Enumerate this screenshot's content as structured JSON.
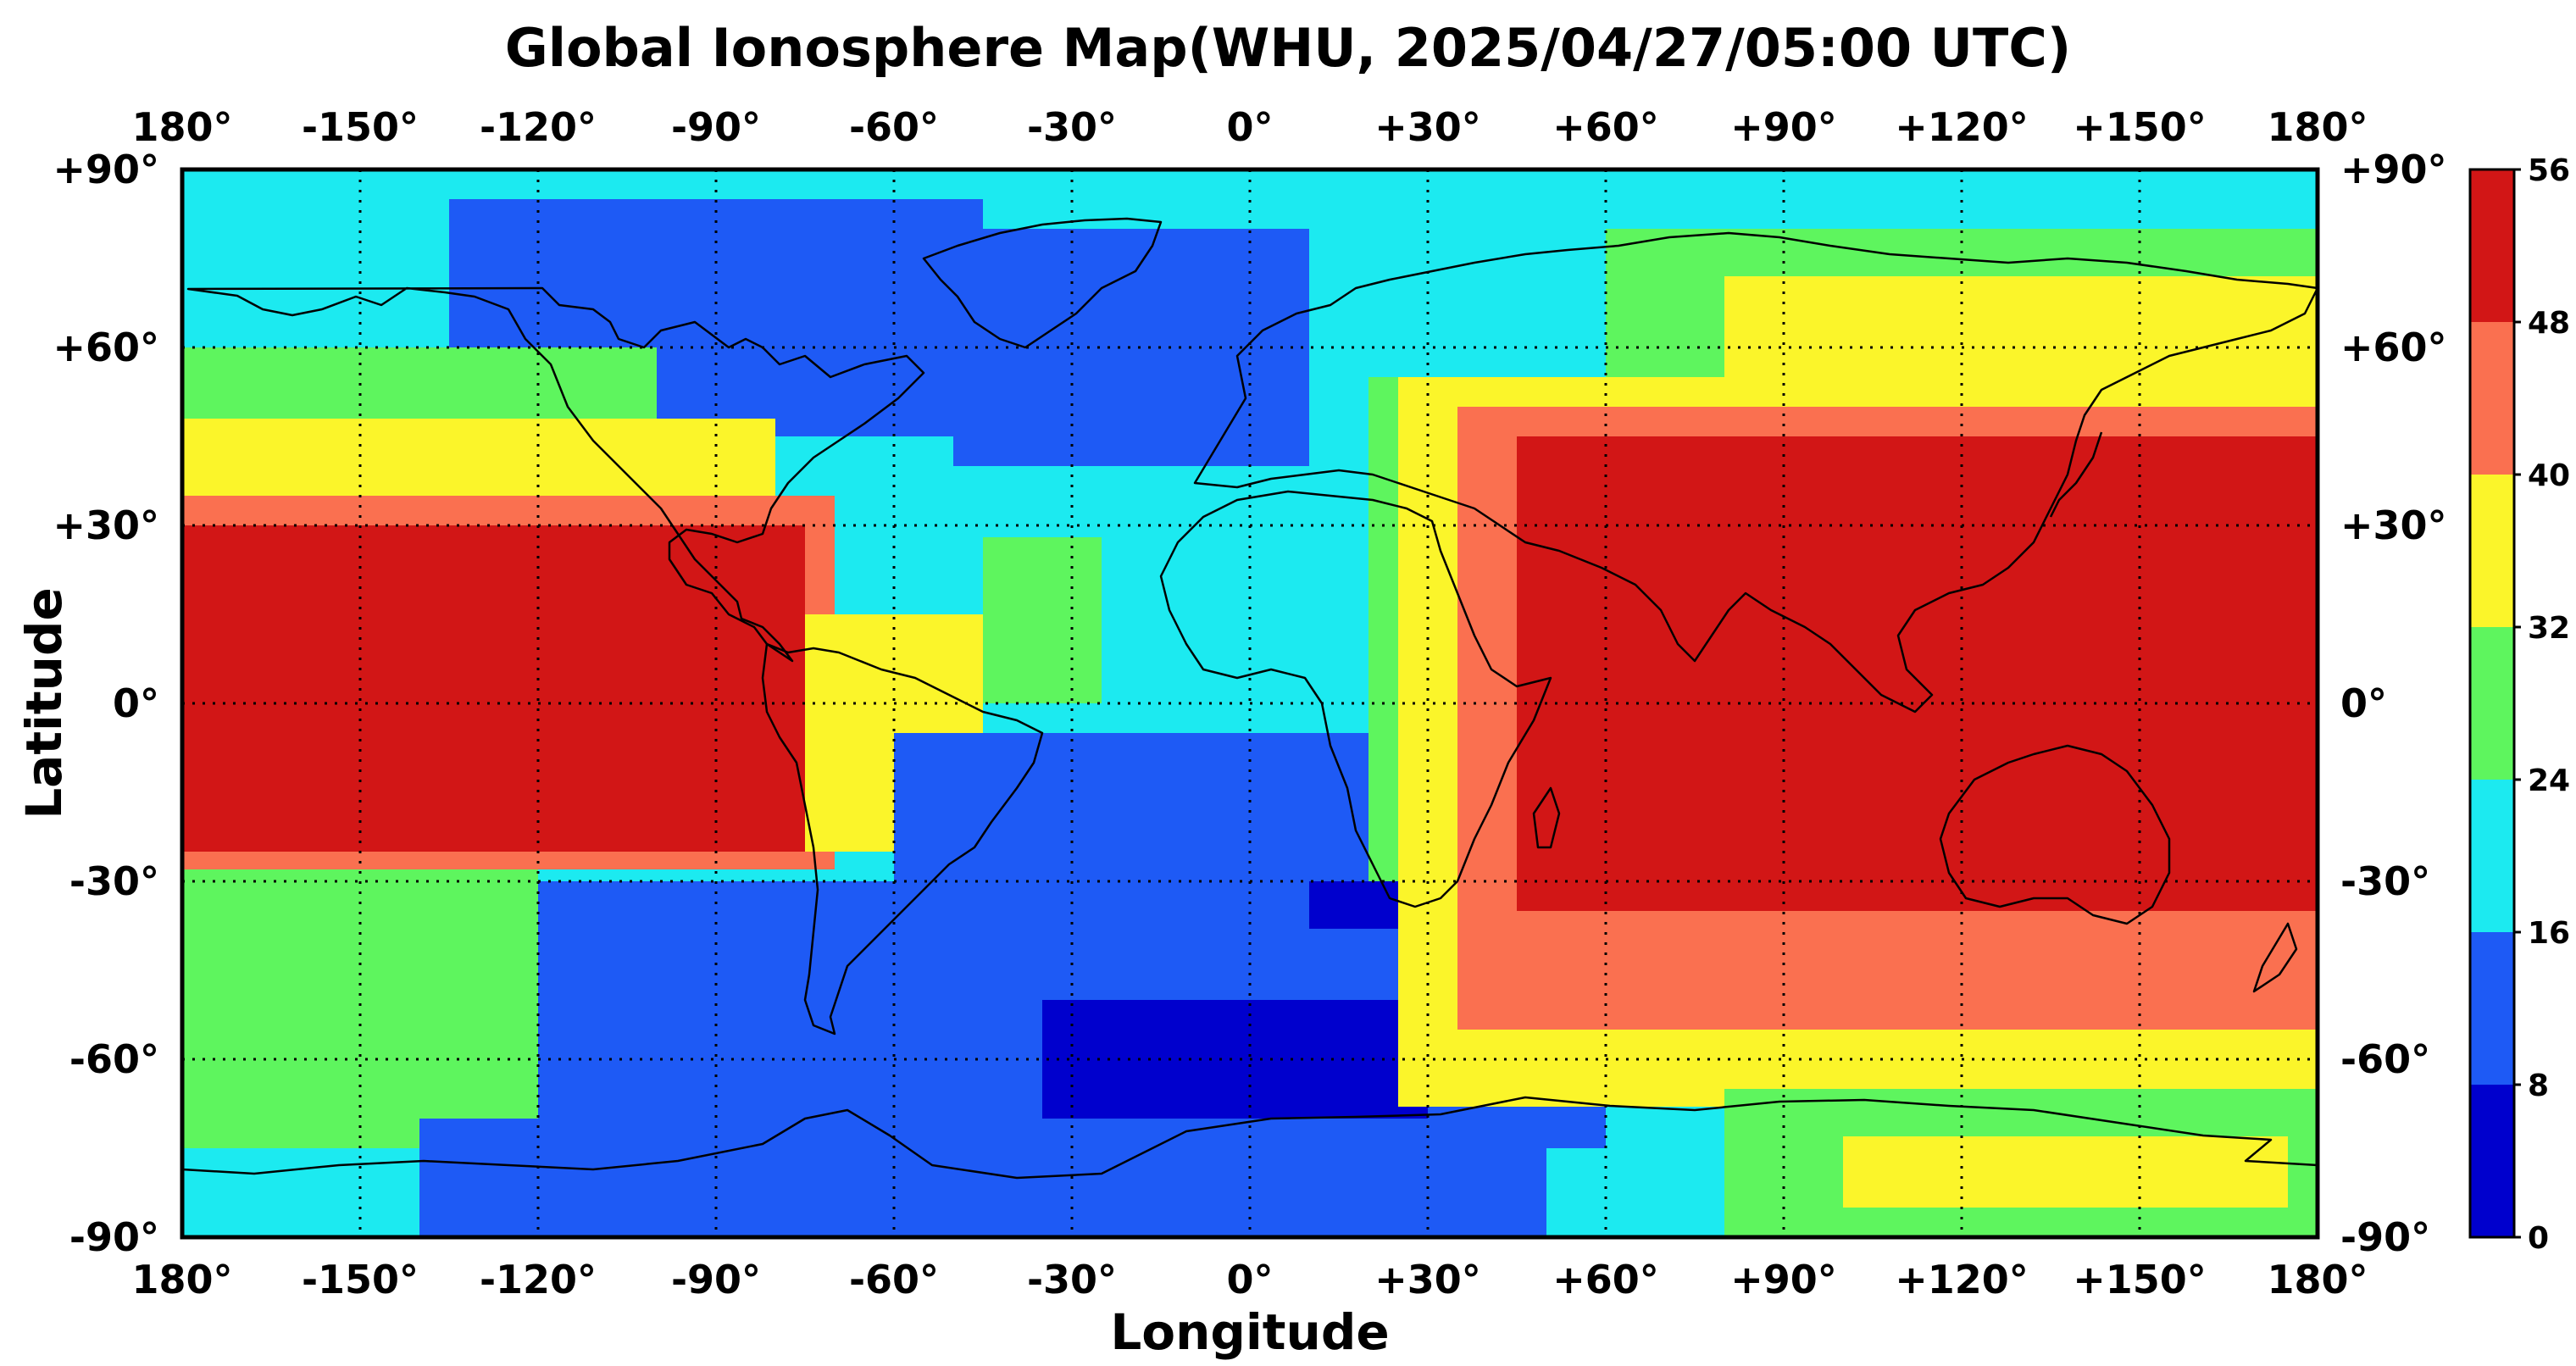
{
  "title": "Global Ionosphere Map(WHU, 2025/04/27/05:00 UTC)",
  "xlabel": "Longitude",
  "ylabel": "Latitude",
  "x_ticks": [
    "180°",
    "-150°",
    "-120°",
    "-90°",
    "-60°",
    "-30°",
    "0°",
    "+30°",
    "+60°",
    "+90°",
    "+120°",
    "+150°",
    "180°"
  ],
  "y_ticks": [
    "+90°",
    "+60°",
    "+30°",
    "0°",
    "-30°",
    "-60°",
    "-90°"
  ],
  "colorbar": {
    "ticks": [
      "56",
      "48",
      "40",
      "32",
      "24",
      "16",
      "8",
      "0"
    ],
    "levels": [
      {
        "min": 0,
        "max": 8,
        "color": "#0000cd"
      },
      {
        "min": 8,
        "max": 16,
        "color": "#1e5af5"
      },
      {
        "min": 16,
        "max": 24,
        "color": "#1ceaf0"
      },
      {
        "min": 24,
        "max": 32,
        "color": "#5ef55e"
      },
      {
        "min": 32,
        "max": 40,
        "color": "#fbf52a"
      },
      {
        "min": 40,
        "max": 48,
        "color": "#fa7050"
      },
      {
        "min": 48,
        "max": 56,
        "color": "#d21616"
      }
    ]
  },
  "chart_data": {
    "type": "heatmap",
    "title": "Global Ionosphere Map(WHU, 2025/04/27/05:00 UTC)",
    "xlabel": "Longitude",
    "ylabel": "Latitude",
    "xlim": [
      -180,
      180
    ],
    "ylim": [
      -90,
      90
    ],
    "grid": true,
    "color_range": [
      0,
      56
    ],
    "regions": [
      {
        "name": "",
        "value": 20,
        "lon": [
          -180,
          180
        ],
        "lat": [
          -90,
          90
        ]
      },
      {
        "name": "",
        "value": 12,
        "lon": [
          -135,
          -45
        ],
        "lat": [
          45,
          85
        ]
      },
      {
        "name": "",
        "value": 12,
        "lon": [
          -50,
          10
        ],
        "lat": [
          40,
          80
        ]
      },
      {
        "name": "",
        "value": 28,
        "lon": [
          -180,
          -100
        ],
        "lat": [
          35,
          60
        ]
      },
      {
        "name": "",
        "value": 36,
        "lon": [
          -180,
          -80
        ],
        "lat": [
          28,
          48
        ]
      },
      {
        "name": "",
        "value": 44,
        "lon": [
          -180,
          -70
        ],
        "lat": [
          -28,
          35
        ]
      },
      {
        "name": "",
        "value": 52,
        "lon": [
          -180,
          -75
        ],
        "lat": [
          -25,
          30
        ]
      },
      {
        "name": "",
        "value": 36,
        "lon": [
          -75,
          -45
        ],
        "lat": [
          -25,
          15
        ]
      },
      {
        "name": "",
        "value": 28,
        "lon": [
          -45,
          -25
        ],
        "lat": [
          0,
          28
        ]
      },
      {
        "name": "",
        "value": 12,
        "lon": [
          -60,
          60
        ],
        "lat": [
          -75,
          -5
        ]
      },
      {
        "name": "",
        "value": 4,
        "lon": [
          -35,
          30
        ],
        "lat": [
          -70,
          -50
        ]
      },
      {
        "name": "",
        "value": 4,
        "lon": [
          10,
          25
        ],
        "lat": [
          -38,
          -30
        ]
      },
      {
        "name": "",
        "value": 12,
        "lon": [
          -140,
          -60
        ],
        "lat": [
          -70,
          -30
        ]
      },
      {
        "name": "",
        "value": 28,
        "lon": [
          -180,
          -120
        ],
        "lat": [
          -75,
          -28
        ]
      },
      {
        "name": "",
        "value": 12,
        "lon": [
          -140,
          50
        ],
        "lat": [
          -90,
          -70
        ]
      },
      {
        "name": "",
        "value": 28,
        "lon": [
          20,
          50
        ],
        "lat": [
          -30,
          55
        ]
      },
      {
        "name": "",
        "value": 28,
        "lon": [
          60,
          180
        ],
        "lat": [
          55,
          80
        ]
      },
      {
        "name": "",
        "value": 36,
        "lon": [
          80,
          180
        ],
        "lat": [
          48,
          72
        ]
      },
      {
        "name": "",
        "value": 36,
        "lon": [
          25,
          180
        ],
        "lat": [
          -68,
          55
        ]
      },
      {
        "name": "",
        "value": 44,
        "lon": [
          35,
          180
        ],
        "lat": [
          -55,
          50
        ]
      },
      {
        "name": "",
        "value": 52,
        "lon": [
          45,
          180
        ],
        "lat": [
          -35,
          45
        ]
      },
      {
        "name": "",
        "value": 28,
        "lon": [
          80,
          180
        ],
        "lat": [
          -90,
          -65
        ]
      },
      {
        "name": "",
        "value": 36,
        "lon": [
          100,
          175
        ],
        "lat": [
          -85,
          -73
        ]
      }
    ]
  }
}
